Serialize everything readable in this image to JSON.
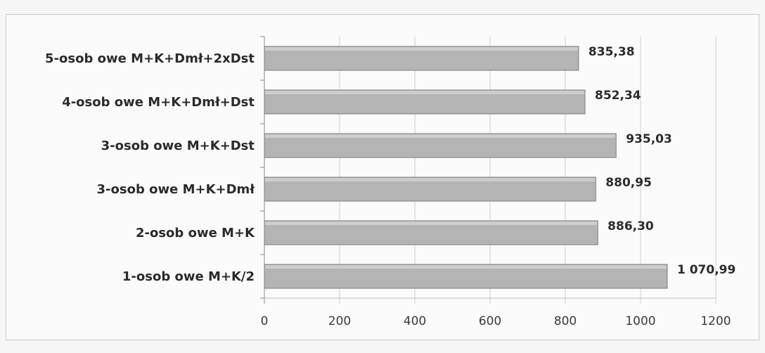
{
  "chart_data": {
    "type": "bar",
    "orientation": "horizontal",
    "categories": [
      "5-osob owe M+K+Dmł+2xDst",
      "4-osob owe M+K+Dmł+Dst",
      "3-osob owe M+K+Dst",
      "3-osob owe M+K+Dmł",
      "2-osob owe M+K",
      "1-osob owe M+K/2"
    ],
    "values": [
      835.38,
      852.34,
      935.03,
      880.95,
      886.3,
      1070.99
    ],
    "value_labels": [
      "835,38",
      "852,34",
      "935,03",
      "880,95",
      "886,30",
      "1 070,99"
    ],
    "xlim": [
      0,
      1200
    ],
    "xticks": [
      0,
      200,
      400,
      600,
      800,
      1000,
      1200
    ],
    "xtick_labels": [
      "0",
      "200",
      "400",
      "600",
      "800",
      "1000",
      "1200"
    ],
    "grid": "vertical",
    "legend": "none",
    "bar_color": "#b4b4b4"
  }
}
